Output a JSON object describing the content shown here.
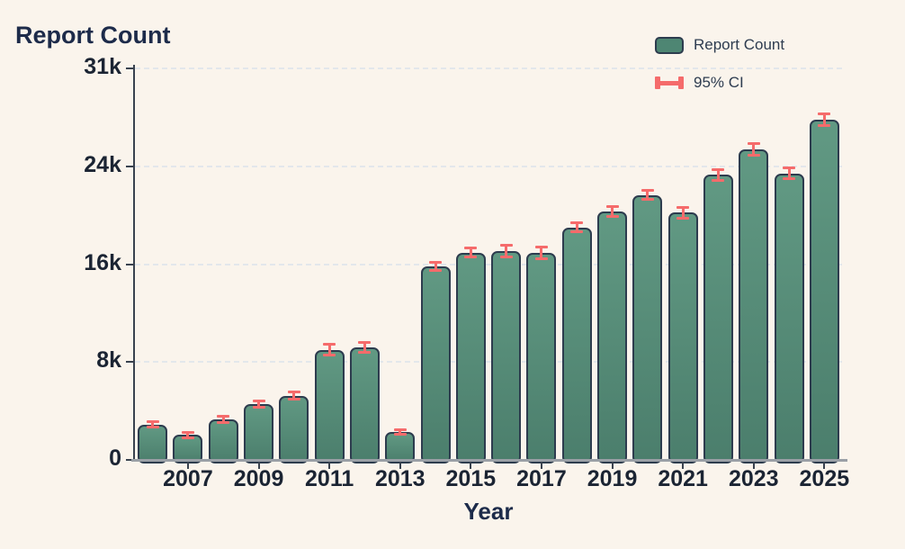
{
  "header": {
    "title": "Report Count"
  },
  "legend": {
    "items": [
      {
        "label": "Report Count",
        "swatch": "bar-swatch"
      },
      {
        "label": "95% CI",
        "swatch": "error-bar-swatch"
      }
    ],
    "position": "top-right"
  },
  "colors": {
    "background": "#faf4ec",
    "bar_fill_top": "#619983",
    "bar_fill_mid": "#4e8673",
    "bar_fill_bottom": "#4b7e6c",
    "bar_border": "#2d3c4e",
    "error_bar": "#f56b6b",
    "gridline": "#e3e7eb",
    "axis": "#39424f",
    "baseline": "#9aa0a6",
    "title_text": "#1d2b4a",
    "tick_text": "#1b2433",
    "legend_text": "#2e3c50"
  },
  "chart_data": {
    "type": "bar",
    "title": "Report Count",
    "xlabel": "Year",
    "ylabel": "",
    "categories": [
      "2006",
      "2007",
      "2008",
      "2009",
      "2010",
      "2011",
      "2012",
      "2013",
      "2014",
      "2015",
      "2016",
      "2017",
      "2018",
      "2019",
      "2020",
      "2021",
      "2022",
      "2023",
      "2024",
      "2025"
    ],
    "series": [
      {
        "name": "Report Count",
        "values": [
          2900,
          2050,
          3300,
          4550,
          5250,
          9000,
          9200,
          2250,
          15800,
          16950,
          17050,
          16950,
          19000,
          20300,
          21650,
          20200,
          23300,
          25400,
          23400,
          27800
        ]
      }
    ],
    "error_95ci_plus_minus": [
      200,
      180,
      200,
      220,
      250,
      400,
      350,
      150,
      300,
      350,
      450,
      440,
      350,
      350,
      350,
      400,
      400,
      450,
      400,
      450
    ],
    "ylim": [
      0,
      31000
    ],
    "yticks": [
      {
        "value": 0,
        "label": "0"
      },
      {
        "value": 8000,
        "label": "8k"
      },
      {
        "value": 16000,
        "label": "16k"
      },
      {
        "value": 24000,
        "label": "24k"
      },
      {
        "value": 31000,
        "label": "31k"
      }
    ],
    "xtick_labels_visible": [
      "2007",
      "2009",
      "2011",
      "2013",
      "2015",
      "2017",
      "2019",
      "2021",
      "2023",
      "2025"
    ],
    "grid": "horizontal-dashed",
    "legend_position": "top-right",
    "bar_style": "rounded-rect, dark border, vertical green gradient",
    "error_style": "red I-beam caps at bar tops"
  }
}
